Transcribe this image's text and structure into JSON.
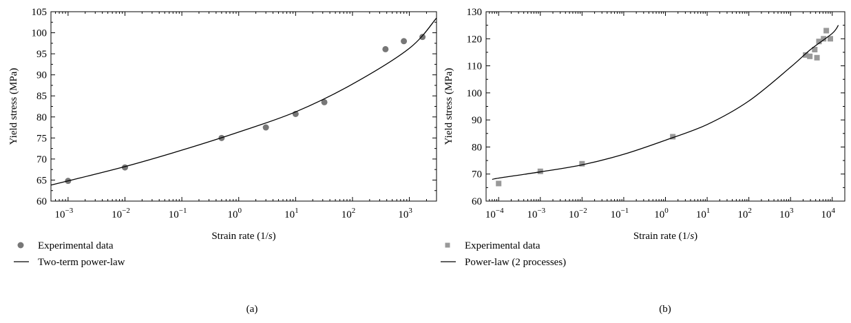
{
  "colors": {
    "marker_a": "#777777",
    "marker_b": "#999999",
    "line": "#000000",
    "frame": "#000000"
  },
  "chart_data": [
    {
      "type": "scatter",
      "caption": "(a)",
      "xlabel": "Strain rate (1/s)",
      "xlabel_parts": {
        "main": "Strain rate (1/",
        "var": "s",
        "end": ")"
      },
      "ylabel": "Yield stress (MPa)",
      "x_scale": "log",
      "xlim": [
        0.0005,
        3000
      ],
      "ylim": [
        60,
        105
      ],
      "xticks": [
        0.001,
        0.01,
        0.1,
        1,
        10,
        100,
        1000
      ],
      "xtick_exponents": [
        "−3",
        "−2",
        "−1",
        "0",
        "1",
        "2",
        "3"
      ],
      "xtick_label_base": "10",
      "yticks": [
        60,
        65,
        70,
        75,
        80,
        85,
        90,
        95,
        100,
        105
      ],
      "grid": false,
      "legend_position": "below-left",
      "series": [
        {
          "name": "Experimental data",
          "kind": "scatter",
          "marker": "circle",
          "x": [
            0.001,
            0.01,
            0.5,
            3,
            10,
            32,
            380,
            800,
            1700
          ],
          "y": [
            64.8,
            68,
            75,
            77.5,
            80.7,
            83.5,
            96.1,
            98,
            99
          ]
        },
        {
          "name": "Two-term power-law",
          "kind": "line",
          "x": [
            0.0005,
            0.001,
            0.01,
            0.1,
            1,
            10,
            100,
            1000,
            3000
          ],
          "y": [
            63.8,
            64.8,
            68.2,
            72.1,
            76.4,
            81.2,
            87.8,
            96.3,
            103.5
          ]
        }
      ]
    },
    {
      "type": "scatter",
      "caption": "(b)",
      "xlabel": "Strain rate (1/s)",
      "xlabel_parts": {
        "main": "Strain rate (1/",
        "var": "s",
        "end": ")"
      },
      "ylabel": "Yield stress (MPa)",
      "x_scale": "log",
      "xlim": [
        5e-05,
        20000
      ],
      "ylim": [
        60,
        130
      ],
      "xticks": [
        0.0001,
        0.001,
        0.01,
        0.1,
        1,
        10,
        100,
        1000,
        10000
      ],
      "xtick_exponents": [
        "−4",
        "−3",
        "−2",
        "−1",
        "0",
        "1",
        "2",
        "3",
        "4"
      ],
      "xtick_label_base": "10",
      "yticks": [
        60,
        70,
        80,
        90,
        100,
        110,
        120,
        130
      ],
      "grid": false,
      "legend_position": "below-left",
      "series": [
        {
          "name": "Experimental data",
          "kind": "scatter",
          "marker": "square",
          "x": [
            0.0001,
            0.001,
            0.01,
            1.5,
            2300,
            2900,
            3800,
            4300,
            4800,
            6200,
            7200,
            9000
          ],
          "y": [
            66.5,
            71,
            73.8,
            83.8,
            114,
            113.5,
            116,
            113,
            119,
            120,
            123,
            120
          ]
        },
        {
          "name": "Power-law (2 processes)",
          "kind": "line",
          "x": [
            7e-05,
            0.0001,
            0.001,
            0.01,
            0.1,
            1,
            10,
            100,
            1000,
            3000,
            10000,
            14000
          ],
          "y": [
            68,
            68.5,
            70.8,
            73.4,
            77.3,
            82.5,
            88.3,
            97,
            109.5,
            116,
            122,
            125
          ]
        }
      ]
    }
  ]
}
